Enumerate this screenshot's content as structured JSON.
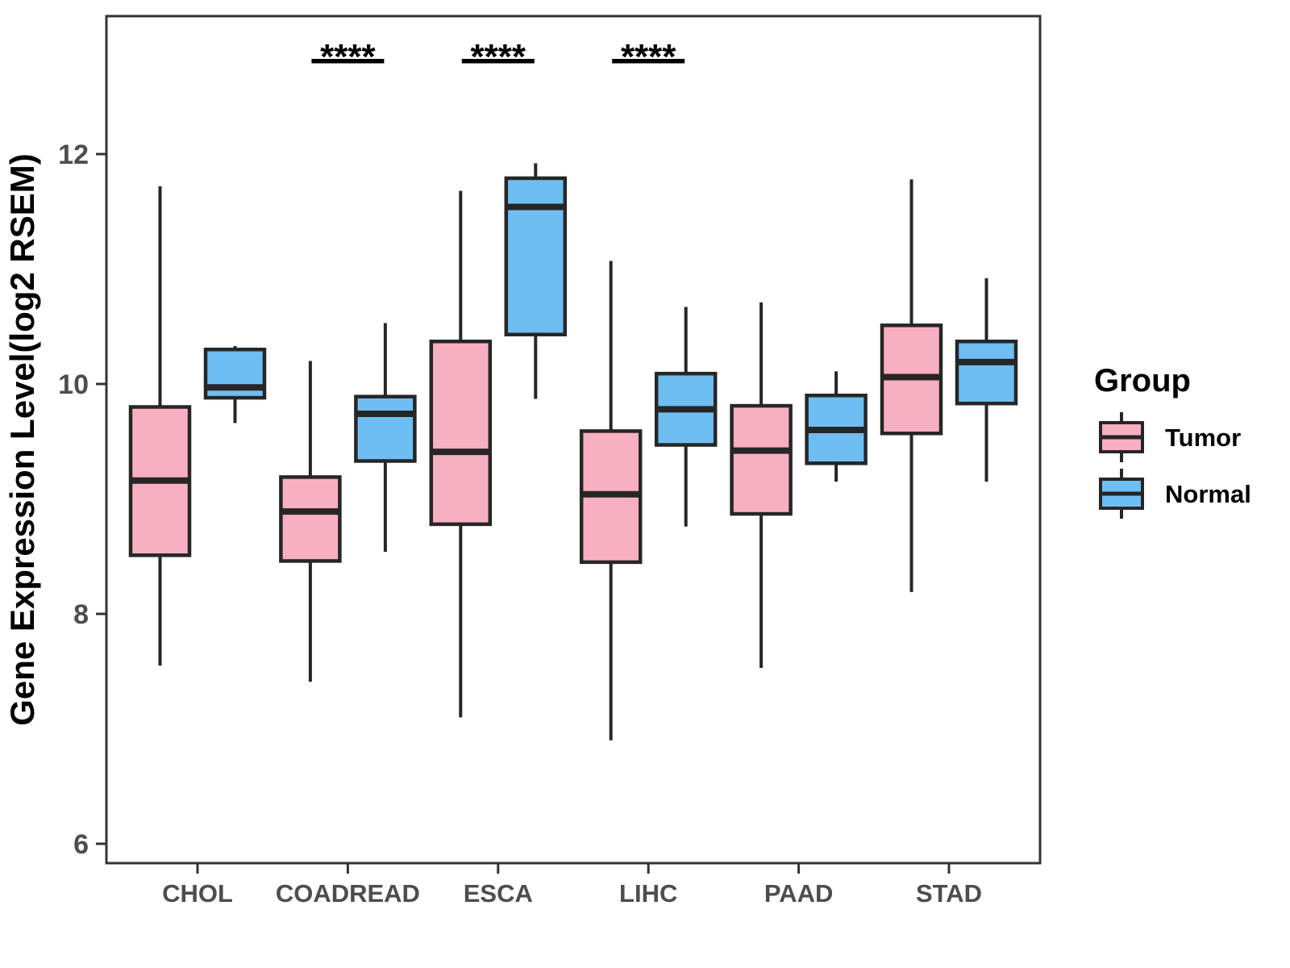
{
  "chart_data": {
    "type": "boxplot",
    "title": "",
    "xlabel": "",
    "ylabel": "Gene Expression Level(log2 RSEM)",
    "ylim": [
      5.8,
      13.2
    ],
    "yticks": [
      12,
      10,
      8,
      6
    ],
    "grid": false,
    "legend_title": "Group",
    "legend_position": "right",
    "categories": [
      "CHOL",
      "COADREAD",
      "ESCA",
      "LIHC",
      "PAAD",
      "STAD"
    ],
    "groups": [
      {
        "name": "Tumor",
        "color": "#F9AFC2"
      },
      {
        "name": "Normal",
        "color": "#6FBEF3"
      }
    ],
    "box_outline_color": "#262626",
    "axis_text_color": "#4d4d4d",
    "series": [
      {
        "group": "Tumor",
        "boxes": [
          {
            "category": "CHOL",
            "whisker_low": 7.55,
            "q1": 8.51,
            "median": 9.16,
            "q3": 9.8,
            "whisker_high": 11.72
          },
          {
            "category": "COADREAD",
            "whisker_low": 7.41,
            "q1": 8.46,
            "median": 8.89,
            "q3": 9.19,
            "whisker_high": 10.2
          },
          {
            "category": "ESCA",
            "whisker_low": 7.1,
            "q1": 8.78,
            "median": 9.41,
            "q3": 10.37,
            "whisker_high": 11.68
          },
          {
            "category": "LIHC",
            "whisker_low": 6.9,
            "q1": 8.45,
            "median": 9.04,
            "q3": 9.59,
            "whisker_high": 11.07
          },
          {
            "category": "PAAD",
            "whisker_low": 7.53,
            "q1": 8.87,
            "median": 9.42,
            "q3": 9.81,
            "whisker_high": 10.71
          },
          {
            "category": "STAD",
            "whisker_low": 8.19,
            "q1": 9.57,
            "median": 10.06,
            "q3": 10.51,
            "whisker_high": 11.78
          }
        ]
      },
      {
        "group": "Normal",
        "boxes": [
          {
            "category": "CHOL",
            "whisker_low": 9.66,
            "q1": 9.88,
            "median": 9.97,
            "q3": 10.3,
            "whisker_high": 10.33
          },
          {
            "category": "COADREAD",
            "whisker_low": 8.54,
            "q1": 9.33,
            "median": 9.74,
            "q3": 9.89,
            "whisker_high": 10.53
          },
          {
            "category": "ESCA",
            "whisker_low": 9.87,
            "q1": 10.43,
            "median": 11.54,
            "q3": 11.79,
            "whisker_high": 11.92
          },
          {
            "category": "LIHC",
            "whisker_low": 8.76,
            "q1": 9.47,
            "median": 9.78,
            "q3": 10.09,
            "whisker_high": 10.67
          },
          {
            "category": "PAAD",
            "whisker_low": 9.15,
            "q1": 9.31,
            "median": 9.6,
            "q3": 9.9,
            "whisker_high": 10.11
          },
          {
            "category": "STAD",
            "whisker_low": 9.15,
            "q1": 9.83,
            "median": 10.19,
            "q3": 10.37,
            "whisker_high": 10.92
          }
        ]
      }
    ],
    "significance": [
      {
        "category": "COADREAD",
        "label": "****"
      },
      {
        "category": "ESCA",
        "label": "****"
      },
      {
        "category": "LIHC",
        "label": "****"
      }
    ]
  }
}
